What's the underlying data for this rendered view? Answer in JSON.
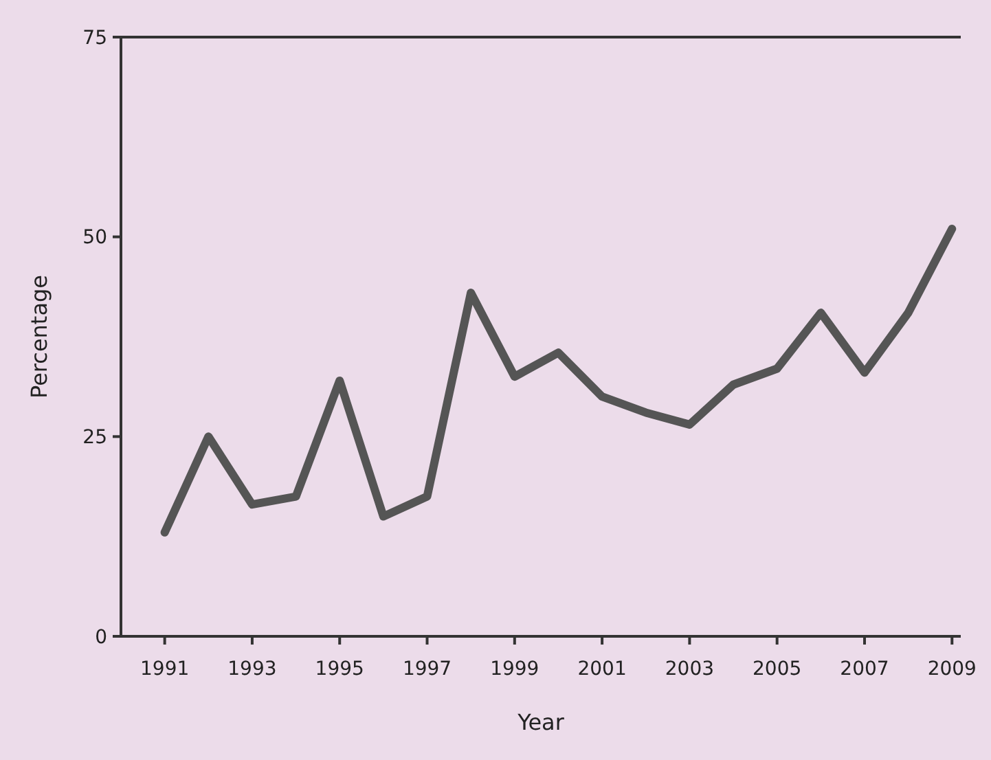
{
  "chart_data": {
    "type": "line",
    "xlabel": "Year",
    "ylabel": "Percentage",
    "x": [
      1991,
      1992,
      1993,
      1994,
      1995,
      1996,
      1997,
      1998,
      1999,
      2000,
      2001,
      2002,
      2003,
      2004,
      2005,
      2006,
      2007,
      2008,
      2009
    ],
    "series": [
      {
        "color": "#555555",
        "values": [
          13,
          25,
          16.5,
          17.5,
          32,
          15,
          17.5,
          43,
          32.5,
          35.5,
          30,
          28,
          26.5,
          31.5,
          33.5,
          40.5,
          33,
          40.5,
          51
        ]
      }
    ],
    "xlim": [
      1990,
      2009.2
    ],
    "xticks": [
      1991,
      1993,
      1995,
      1997,
      1999,
      2001,
      2003,
      2005,
      2007,
      2009
    ],
    "ylim": [
      0,
      75
    ],
    "yticks": [
      0,
      25,
      50,
      75
    ],
    "grid": false,
    "marker": "none",
    "line_style": "solid"
  }
}
